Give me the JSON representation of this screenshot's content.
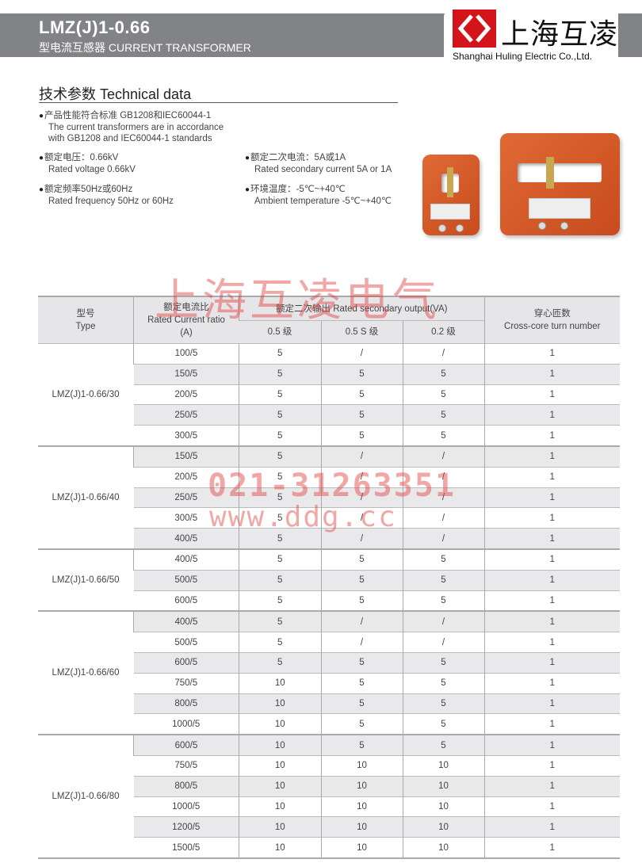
{
  "header": {
    "title": "LMZ(J)1-0.66",
    "subtitle": "型电流互感器 CURRENT TRANSFORMER",
    "brand_cn": "上海互凌",
    "brand_en": "Shanghai Huling Electric Co.,Ltd.",
    "brand_color": "#d4141b"
  },
  "section": {
    "title": "技术参数  Technical data",
    "specs": [
      {
        "cn": "产品性能符合标准 GB1208和IEC60044-1",
        "en1": "The current transformers are in accordance",
        "en2": "with GB1208 and IEC60044-1 standards"
      },
      {
        "cn": "额定电压：0.66kV",
        "en1": "Rated voltage 0.66kV"
      },
      {
        "cn": "额定二次电流：5A或1A",
        "en1": "Rated secondary current 5A or 1A"
      },
      {
        "cn": "额定频率50Hz或60Hz",
        "en1": "Rated frequency 50Hz or 60Hz"
      },
      {
        "cn": "环境温度：-5℃~+40℃",
        "en1": "Ambient temperature -5℃~+40℃"
      }
    ]
  },
  "watermarks": {
    "company": "上海互凌电气",
    "phone": "021-31263351",
    "site": "www.ddg.cc"
  },
  "table": {
    "headers": {
      "type_cn": "型号",
      "type_en": "Type",
      "ratio_cn": "额定电流比",
      "ratio_en": "Rated Current ratio",
      "ratio_unit": "(A)",
      "output": "额定二次输出 Rated secondary output(VA)",
      "class_05": "0.5 级",
      "class_05s": "0.5 S 级",
      "class_02": "0.2 级",
      "turns_cn": "穿心匝数",
      "turns_en": "Cross-core turn number"
    },
    "groups": [
      {
        "model": "LMZ(J)1-0.66/30",
        "rows": [
          [
            "100/5",
            "5",
            "/",
            "/",
            "1"
          ],
          [
            "150/5",
            "5",
            "5",
            "5",
            "1"
          ],
          [
            "200/5",
            "5",
            "5",
            "5",
            "1"
          ],
          [
            "250/5",
            "5",
            "5",
            "5",
            "1"
          ],
          [
            "300/5",
            "5",
            "5",
            "5",
            "1"
          ]
        ]
      },
      {
        "model": "LMZ(J)1-0.66/40",
        "rows": [
          [
            "150/5",
            "5",
            "/",
            "/",
            "1"
          ],
          [
            "200/5",
            "5",
            "/",
            "/",
            "1"
          ],
          [
            "250/5",
            "5",
            "/",
            "/",
            "1"
          ],
          [
            "300/5",
            "5",
            "/",
            "/",
            "1"
          ],
          [
            "400/5",
            "5",
            "/",
            "/",
            "1"
          ]
        ]
      },
      {
        "model": "LMZ(J)1-0.66/50",
        "rows": [
          [
            "400/5",
            "5",
            "5",
            "5",
            "1"
          ],
          [
            "500/5",
            "5",
            "5",
            "5",
            "1"
          ],
          [
            "600/5",
            "5",
            "5",
            "5",
            "1"
          ]
        ]
      },
      {
        "model": "LMZ(J)1-0.66/60",
        "rows": [
          [
            "400/5",
            "5",
            "/",
            "/",
            "1"
          ],
          [
            "500/5",
            "5",
            "/",
            "/",
            "1"
          ],
          [
            "600/5",
            "5",
            "5",
            "5",
            "1"
          ],
          [
            "750/5",
            "10",
            "5",
            "5",
            "1"
          ],
          [
            "800/5",
            "10",
            "5",
            "5",
            "1"
          ],
          [
            "1000/5",
            "10",
            "5",
            "5",
            "1"
          ]
        ]
      },
      {
        "model": "LMZ(J)1-0.66/80",
        "rows": [
          [
            "600/5",
            "10",
            "5",
            "5",
            "1"
          ],
          [
            "750/5",
            "10",
            "10",
            "10",
            "1"
          ],
          [
            "800/5",
            "10",
            "10",
            "10",
            "1"
          ],
          [
            "1000/5",
            "10",
            "10",
            "10",
            "1"
          ],
          [
            "1200/5",
            "10",
            "10",
            "10",
            "1"
          ],
          [
            "1500/5",
            "10",
            "10",
            "10",
            "1"
          ]
        ]
      }
    ]
  }
}
